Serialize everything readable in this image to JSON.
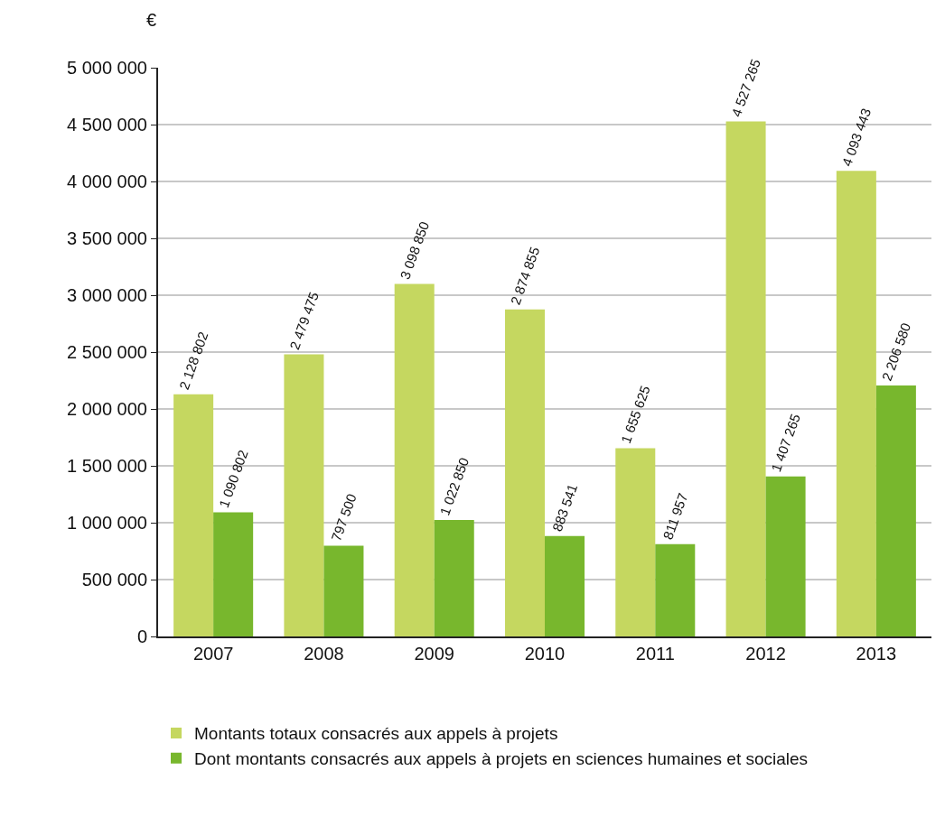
{
  "chart_data": {
    "type": "bar",
    "ylabel": "€",
    "categories": [
      "2007",
      "2008",
      "2009",
      "2010",
      "2011",
      "2012",
      "2013"
    ],
    "series": [
      {
        "name": "Montants totaux consacrés aux appels à projets",
        "color": "#c5d760",
        "values": [
          2128802,
          2479475,
          3098850,
          2874855,
          1655625,
          4527265,
          4093443
        ],
        "value_labels": [
          "2 128 802",
          "2 479 475",
          "3 098 850",
          "2 874 855",
          "1 655 625",
          "4 527 265",
          "4 093 443"
        ]
      },
      {
        "name": "Dont montants consacrés aux appels à projets en sciences humaines et sociales",
        "color": "#78b72d",
        "values": [
          1090802,
          797500,
          1022850,
          883541,
          811957,
          1407265,
          2206580
        ],
        "value_labels": [
          "1 090 802",
          "797 500",
          "1 022 850",
          "883 541",
          "811 957",
          "1 407 265",
          "2 206 580"
        ]
      }
    ],
    "ylim": [
      0,
      5000000
    ],
    "yticks": [
      0,
      {
        "value": 500000,
        "label": "500 000"
      },
      {
        "value": 1000000,
        "label": "1 000 000"
      },
      {
        "value": 1500000,
        "label": "1 500 000"
      },
      {
        "value": 2000000,
        "label": "2 000 000"
      },
      {
        "value": 2500000,
        "label": "2 500 000"
      },
      {
        "value": 3000000,
        "label": "3 000 000"
      },
      {
        "value": 3500000,
        "label": "3 500 000"
      },
      {
        "value": 4000000,
        "label": "4 000 000"
      },
      {
        "value": 4500000,
        "label": "4 500 000"
      },
      {
        "value": 5000000,
        "label": "5 000 000"
      }
    ],
    "grid": "y",
    "legend": "bottom"
  }
}
